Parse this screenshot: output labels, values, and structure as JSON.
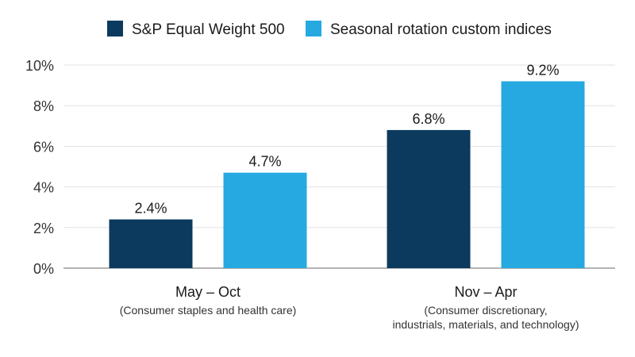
{
  "chart_data": {
    "type": "bar",
    "categories": [
      "May – Oct",
      "Nov – Apr"
    ],
    "category_sublabels": [
      [
        "(Consumer staples and health care)"
      ],
      [
        "(Consumer discretionary,",
        "industrials, materials, and technology)"
      ]
    ],
    "series": [
      {
        "name": "S&P Equal Weight 500",
        "color": "#0b3a5e",
        "values": [
          2.4,
          6.8
        ],
        "value_labels": [
          "2.4%",
          "6.8%"
        ]
      },
      {
        "name": "Seasonal rotation custom indices",
        "color": "#25a9e0",
        "values": [
          4.7,
          9.2
        ],
        "value_labels": [
          "4.7%",
          "9.2%"
        ]
      }
    ],
    "ylim": [
      0,
      10
    ],
    "yticks": [
      0,
      2,
      4,
      6,
      8,
      10
    ],
    "ytick_labels": [
      "0%",
      "2%",
      "4%",
      "6%",
      "8%",
      "10%"
    ],
    "grid": true,
    "legend_position": "top-center"
  }
}
